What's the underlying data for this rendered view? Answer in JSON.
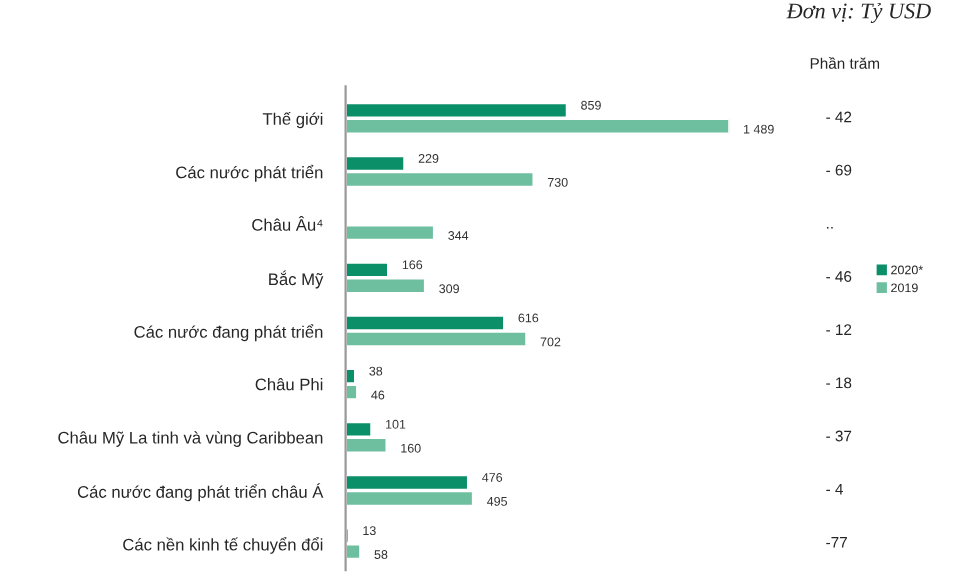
{
  "chart_data": {
    "type": "bar",
    "orientation": "horizontal",
    "subtitle": "Đơn vị: Tỷ USD",
    "categories": [
      "Thế giới",
      "Các nước phát triển",
      "Châu Âu⁴",
      "Bắc Mỹ",
      "Các nước đang phát triển",
      "Châu Phi",
      "Châu Mỹ La tinh và vùng Caribbean",
      "Các nước đang phát triển châu Á",
      "Các nền kinh tế chuyển đổi"
    ],
    "series": [
      {
        "name": "2020*",
        "color": "#0b8f68",
        "values": [
          859,
          229,
          null,
          166,
          616,
          38,
          101,
          476,
          13
        ],
        "value_labels": [
          "859",
          "229",
          null,
          "166",
          "616",
          "38",
          "101",
          "476",
          "13"
        ]
      },
      {
        "name": "2019",
        "color": "#6dbf9f",
        "values": [
          1489,
          730,
          344,
          309,
          702,
          46,
          160,
          495,
          58
        ],
        "value_labels": [
          "1 489",
          "730",
          "344",
          "309",
          "702",
          "46",
          "160",
          "495",
          "58"
        ]
      }
    ],
    "annotations": [
      "Phần trăm",
      "- 42",
      "- 69",
      "..",
      "- 46",
      "- 12",
      "- 18",
      "- 37",
      "- 4",
      "-77"
    ],
    "legend": "right",
    "grid": false
  }
}
